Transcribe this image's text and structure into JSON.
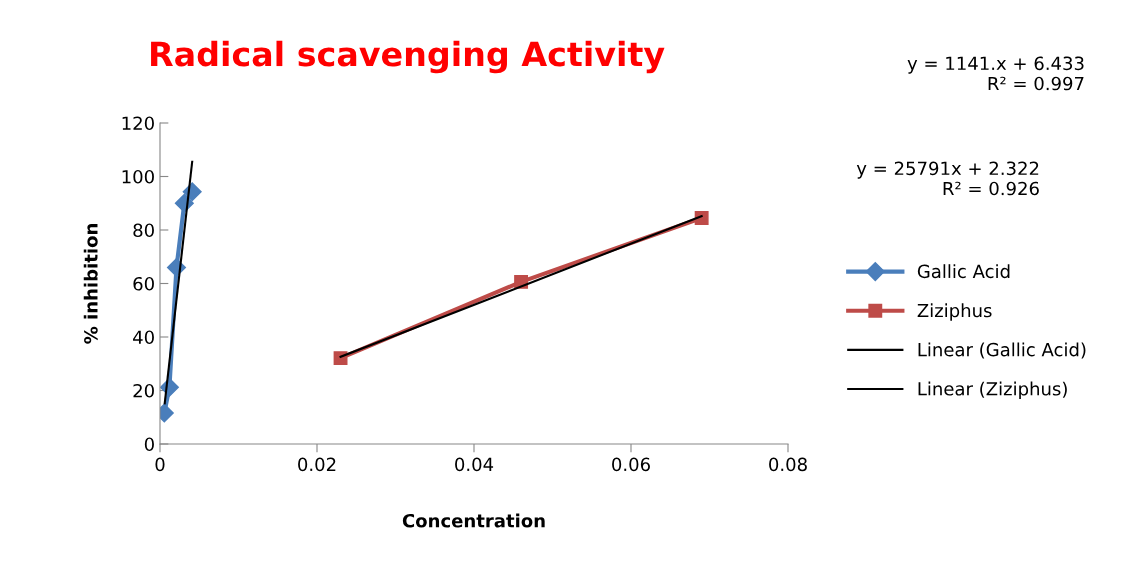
{
  "chart_data": {
    "type": "line",
    "title": "Radical scavenging Activity",
    "xlabel": "Concentration",
    "ylabel": "% inhibition",
    "xlim": [
      0,
      0.08
    ],
    "xticks": [
      0,
      0.02,
      0.04,
      0.06,
      0.08
    ],
    "ylim": [
      0,
      120
    ],
    "yticks": [
      0,
      20,
      40,
      60,
      80,
      100,
      120
    ],
    "grid": false,
    "legend": "right",
    "series": [
      {
        "name": "Gallic Acid",
        "color": "#4a7ebb",
        "marker": "diamond",
        "x": [
          0.00055,
          0.0012,
          0.0021,
          0.0031,
          0.0041
        ],
        "values": [
          11.6,
          21.2,
          66,
          90,
          94.3
        ]
      },
      {
        "name": "Ziziphus",
        "color": "#be4b48",
        "marker": "square",
        "x": [
          0.023,
          0.046,
          0.069
        ],
        "values": [
          32.1,
          60.6,
          84.5
        ]
      },
      {
        "name": "Linear (Gallic Acid)",
        "color": "#000000",
        "marker": "none",
        "x": [
          0.0006,
          0.0041
        ],
        "values": [
          15.2,
          105.5
        ]
      },
      {
        "name": "Linear (Ziziphus)",
        "color": "#000000",
        "marker": "none",
        "x": [
          0.023,
          0.069
        ],
        "values": [
          32.6,
          85.2
        ]
      }
    ],
    "annotations": [
      "y = 1141.x + 6.433\nR² = 0.997",
      "y = 25791x + 2.322\nR² = 0.926"
    ]
  }
}
